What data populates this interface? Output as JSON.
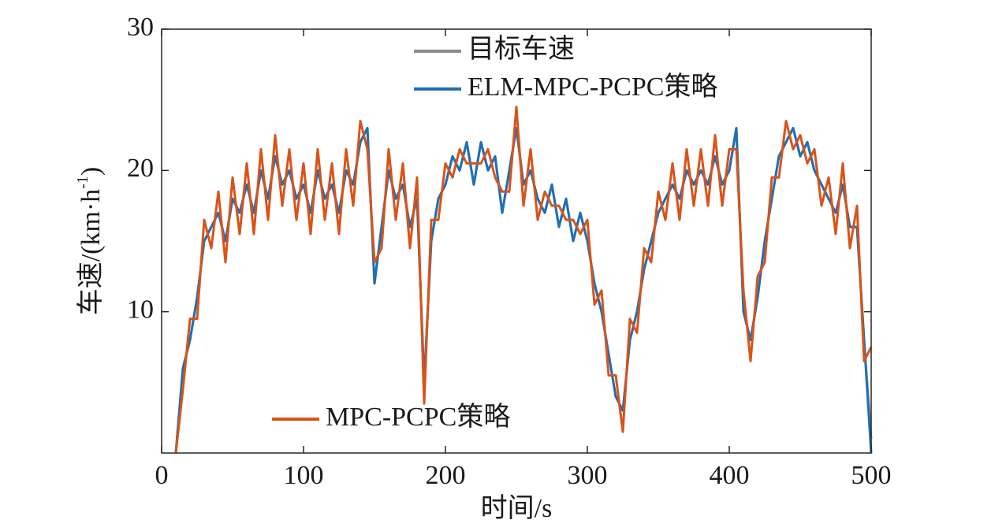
{
  "chart_data": {
    "type": "line",
    "xlabel": "时间/s",
    "ylabel": [
      "车速/(km·h",
      "-1",
      ")"
    ],
    "x": [
      10,
      15,
      20,
      25,
      30,
      35,
      40,
      45,
      50,
      55,
      60,
      65,
      70,
      75,
      80,
      85,
      90,
      95,
      100,
      105,
      110,
      115,
      120,
      125,
      130,
      135,
      140,
      145,
      150,
      155,
      160,
      165,
      170,
      175,
      180,
      185,
      190,
      195,
      200,
      205,
      210,
      215,
      220,
      225,
      230,
      235,
      240,
      245,
      250,
      255,
      260,
      265,
      270,
      275,
      280,
      285,
      290,
      295,
      300,
      305,
      310,
      315,
      320,
      325,
      330,
      335,
      340,
      345,
      350,
      355,
      360,
      365,
      370,
      375,
      380,
      385,
      390,
      395,
      400,
      405,
      410,
      415,
      420,
      425,
      430,
      435,
      440,
      445,
      450,
      455,
      460,
      465,
      470,
      475,
      480,
      485,
      490,
      495,
      500
    ],
    "series": [
      {
        "name": "目标车速",
        "color": "#8c8c8c",
        "values": [
          0,
          6,
          8,
          11,
          15,
          16,
          17,
          15,
          18,
          17,
          19,
          17,
          20,
          18,
          21,
          19,
          20,
          18,
          19,
          17,
          20,
          18,
          19,
          17,
          20,
          19,
          22,
          23,
          12,
          16,
          20,
          18,
          19,
          16,
          18,
          5,
          15,
          18,
          19,
          21,
          20,
          22,
          19,
          22,
          20,
          21,
          17,
          20,
          23,
          19,
          20,
          18,
          17,
          19,
          16,
          18,
          15,
          17,
          15,
          12,
          10,
          7,
          4,
          3,
          8,
          10,
          13,
          15,
          17,
          18,
          19,
          18,
          20,
          19,
          20,
          19,
          21,
          19,
          20,
          23,
          10,
          8,
          11,
          15,
          18,
          21,
          22,
          23,
          21,
          22,
          20,
          19,
          18,
          17,
          19,
          16,
          16,
          8,
          1
        ]
      },
      {
        "name": "ELM-MPC-PCPC策略",
        "color": "#1f6fb4",
        "values": [
          0,
          6,
          8,
          11,
          15,
          16,
          17,
          15,
          18,
          17,
          19,
          17,
          20,
          18,
          21,
          19,
          20,
          18,
          19,
          17,
          20,
          18,
          19,
          17,
          20,
          19,
          22,
          23,
          12,
          16,
          20,
          18,
          19,
          16,
          18,
          5,
          15,
          18,
          19,
          21,
          20,
          22,
          19,
          22,
          20,
          21,
          17,
          20,
          23,
          19,
          20,
          18,
          17,
          19,
          16,
          18,
          15,
          17,
          15,
          12,
          10,
          7,
          4,
          3,
          8,
          10,
          13,
          15,
          17,
          18,
          19,
          18,
          20,
          19,
          20,
          19,
          21,
          19,
          20,
          23,
          10,
          8,
          11,
          15,
          18,
          21,
          22,
          23,
          21,
          22,
          20,
          19,
          18,
          17,
          19,
          16,
          16,
          8,
          0
        ]
      },
      {
        "name": "MPC-PCPC策略",
        "color": "#d95319",
        "values": [
          0,
          4.5,
          9.5,
          9.5,
          16.5,
          14.5,
          18.5,
          13.5,
          19.5,
          15.5,
          20.5,
          15.5,
          21.5,
          16.5,
          22.5,
          17.5,
          21.5,
          16.5,
          20.5,
          15.5,
          21.5,
          16.5,
          20.5,
          15.5,
          21.5,
          17.5,
          23.5,
          21.5,
          13.5,
          14.5,
          21.5,
          16.5,
          20.5,
          14.5,
          19.5,
          3.5,
          16.5,
          16.5,
          20.5,
          19.5,
          21.5,
          20.5,
          20.5,
          20.5,
          21.5,
          19.5,
          18.5,
          18.5,
          24.5,
          17.5,
          21.5,
          16.5,
          18.5,
          17.5,
          17.5,
          16.5,
          16.5,
          15.5,
          16.5,
          10.5,
          11.5,
          5.5,
          5.5,
          1.5,
          9.5,
          8.5,
          14.5,
          13.5,
          18.5,
          16.5,
          20.5,
          16.5,
          21.5,
          17.5,
          21.5,
          17.5,
          22.5,
          17.5,
          21.5,
          21.5,
          11.5,
          6.5,
          12.5,
          13.5,
          19.5,
          19.5,
          23.5,
          21.5,
          22.5,
          20.5,
          21.5,
          17.5,
          19.5,
          15.5,
          20.5,
          14.5,
          17.5,
          6.5,
          7.5
        ]
      }
    ],
    "xlim": [
      0,
      500
    ],
    "xticks": [
      0,
      100,
      200,
      300,
      400,
      500
    ],
    "ylim": [
      0,
      30
    ],
    "yticks": [
      10,
      20,
      30
    ]
  }
}
